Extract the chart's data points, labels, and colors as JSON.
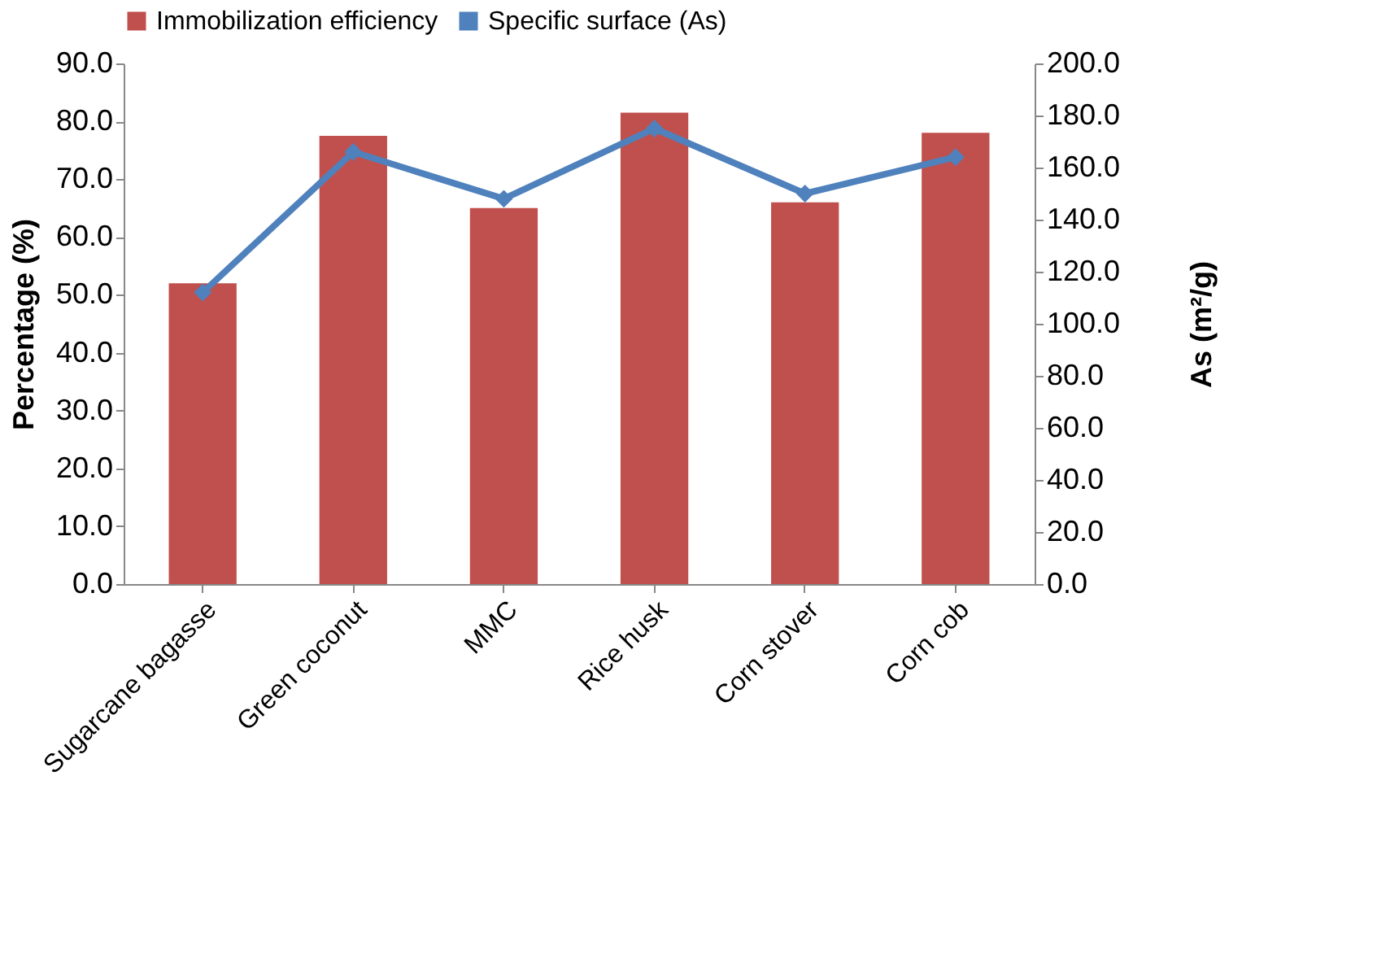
{
  "chart_data": {
    "type": "bar",
    "categories": [
      "Sugarcane bagasse",
      "Green coconut",
      "MMC",
      "Rice husk",
      "Corn stover",
      "Corn cob"
    ],
    "series": [
      {
        "name": "Immobilization efficiency",
        "color": "#c0504d",
        "values": [
          52.0,
          77.5,
          65.0,
          81.5,
          66.0,
          78.0
        ]
      },
      {
        "name": "Specific surface (As)",
        "type": "line",
        "axis": "y2",
        "color": "#4f81bd",
        "marker": "diamond",
        "values": [
          112,
          166,
          148,
          175,
          150,
          164
        ]
      }
    ],
    "ylabel": "Percentage (%)",
    "y2label": "As (m²/g)",
    "ylim": [
      0,
      90
    ],
    "yticks": [
      {
        "value": 0,
        "label": "0.0"
      },
      {
        "value": 10,
        "label": "10.0"
      },
      {
        "value": 20,
        "label": "20.0"
      },
      {
        "value": 30,
        "label": "30.0"
      },
      {
        "value": 40,
        "label": "40.0"
      },
      {
        "value": 50,
        "label": "50.0"
      },
      {
        "value": 60,
        "label": "60.0"
      },
      {
        "value": 70,
        "label": "70.0"
      },
      {
        "value": 80,
        "label": "80.0"
      },
      {
        "value": 90,
        "label": "90.0"
      }
    ],
    "y2lim": [
      0,
      200
    ],
    "y2ticks": [
      {
        "value": 0,
        "label": "0.0"
      },
      {
        "value": 20,
        "label": "20.0"
      },
      {
        "value": 40,
        "label": "40.0"
      },
      {
        "value": 60,
        "label": "60.0"
      },
      {
        "value": 80,
        "label": "80.0"
      },
      {
        "value": 100,
        "label": "100.0"
      },
      {
        "value": 120,
        "label": "120.0"
      },
      {
        "value": 140,
        "label": "140.0"
      },
      {
        "value": 160,
        "label": "160.0"
      },
      {
        "value": 180,
        "label": "180.0"
      },
      {
        "value": 200,
        "label": "200.0"
      }
    ],
    "legend": "top",
    "grid": false
  }
}
